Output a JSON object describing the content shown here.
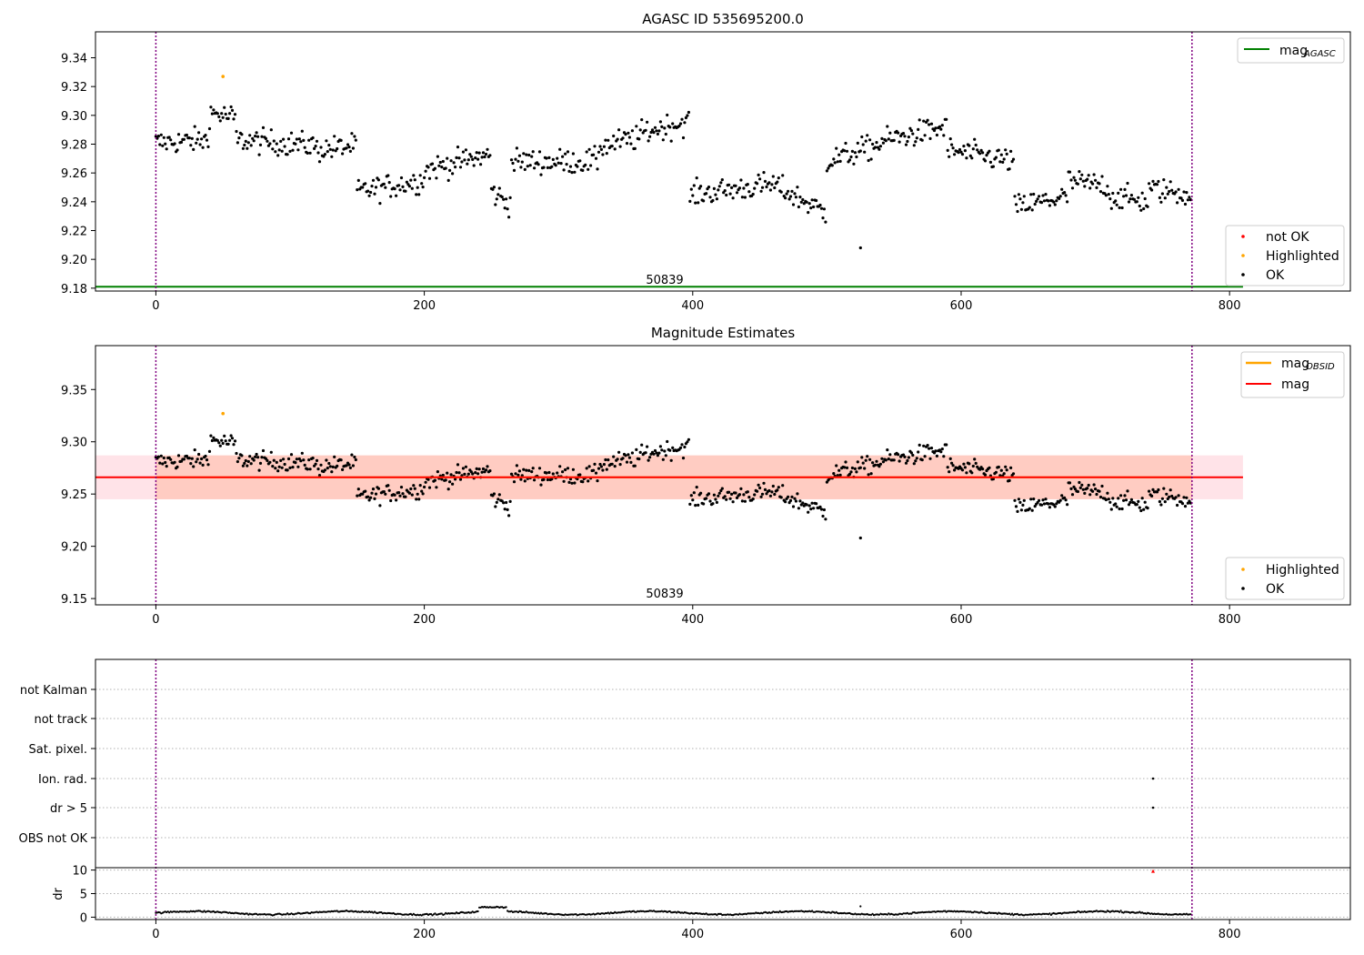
{
  "colors": {
    "ok": "#000000",
    "highlighted": "#ffa500",
    "not_ok": "#ff0000",
    "agasc_line": "#008000",
    "mag_line": "#ff0000",
    "obsid_line": "#ffa500",
    "band_outer": "#ffc0cb",
    "band_inner": "#ffa07a",
    "vline": "#800080"
  },
  "chart_data": [
    {
      "type": "scatter",
      "title": "AGASC ID 535695200.0",
      "xlim": [
        -45,
        890
      ],
      "ylim": [
        9.178,
        9.358
      ],
      "xticks": [
        "0",
        "200",
        "400",
        "600",
        "800"
      ],
      "yticks": [
        "9.18",
        "9.20",
        "9.22",
        "9.24",
        "9.26",
        "9.28",
        "9.30",
        "9.32",
        "9.34"
      ],
      "vlines": [
        0,
        772
      ],
      "hline_agasc": {
        "value": 9.181,
        "x_end": 810
      },
      "annotation": {
        "text": "50839",
        "x": 386
      },
      "legend_lines": [
        {
          "main": "mag",
          "sub": "AGASC"
        }
      ],
      "legend_points": [
        "not OK",
        "Highlighted",
        "OK"
      ],
      "highlighted_point": {
        "x": 50,
        "y": 9.327
      },
      "outlier_points": [
        {
          "x": 525,
          "y": 9.208
        }
      ],
      "segments": [
        {
          "x": [
            0,
            40
          ],
          "y": [
            9.281,
            9.283
          ]
        },
        {
          "x": [
            40,
            60
          ],
          "y": [
            9.302,
            9.298
          ]
        },
        {
          "x": [
            60,
            120
          ],
          "y": [
            9.283,
            9.279
          ]
        },
        {
          "x": [
            120,
            150
          ],
          "y": [
            9.276,
            9.279
          ]
        },
        {
          "x": [
            150,
            200
          ],
          "y": [
            9.247,
            9.255
          ]
        },
        {
          "x": [
            200,
            250
          ],
          "y": [
            9.262,
            9.273
          ]
        },
        {
          "x": [
            250,
            265
          ],
          "y": [
            9.247,
            9.238
          ]
        },
        {
          "x": [
            265,
            330
          ],
          "y": [
            9.268,
            9.268
          ]
        },
        {
          "x": [
            330,
            362
          ],
          "y": [
            9.278,
            9.285
          ]
        },
        {
          "x": [
            362,
            398
          ],
          "y": [
            9.288,
            9.296
          ]
        },
        {
          "x": [
            398,
            460
          ],
          "y": [
            9.245,
            9.252
          ]
        },
        {
          "x": [
            460,
            500
          ],
          "y": [
            9.252,
            9.232
          ]
        },
        {
          "x": [
            500,
            540
          ],
          "y": [
            9.268,
            9.28
          ]
        },
        {
          "x": [
            540,
            590
          ],
          "y": [
            9.282,
            9.292
          ]
        },
        {
          "x": [
            590,
            640
          ],
          "y": [
            9.276,
            9.268
          ]
        },
        {
          "x": [
            640,
            680
          ],
          "y": [
            9.236,
            9.244
          ]
        },
        {
          "x": [
            680,
            710
          ],
          "y": [
            9.254,
            9.251
          ]
        },
        {
          "x": [
            710,
            740
          ],
          "y": [
            9.244,
            9.24
          ]
        },
        {
          "x": [
            740,
            772
          ],
          "y": [
            9.249,
            9.245
          ]
        }
      ]
    },
    {
      "type": "scatter",
      "title": "Magnitude Estimates",
      "xlim": [
        -45,
        890
      ],
      "ylim": [
        9.144,
        9.392
      ],
      "xticks": [
        "0",
        "200",
        "400",
        "600",
        "800"
      ],
      "yticks": [
        "9.15",
        "9.20",
        "9.25",
        "9.30",
        "9.35"
      ],
      "vlines": [
        0,
        772
      ],
      "mag": {
        "value": 9.266,
        "band": [
          9.245,
          9.287
        ],
        "x_end": 810
      },
      "annotation": {
        "text": "50839",
        "x": 386
      },
      "legend_lines": [
        {
          "main": "mag",
          "sub": "OBSID"
        },
        {
          "main": "mag",
          "sub": ""
        }
      ],
      "legend_points": [
        "Highlighted",
        "OK"
      ],
      "highlighted_point": {
        "x": 50,
        "y": 9.327
      }
    },
    {
      "type": "scatter",
      "title": "",
      "xlim": [
        -45,
        890
      ],
      "xticks": [
        "0",
        "200",
        "400",
        "600",
        "800"
      ],
      "flag_labels": [
        "not Kalman",
        "not track",
        "Sat. pixel.",
        "Ion. rad.",
        "dr > 5",
        "OBS not OK"
      ],
      "flag_points": [
        {
          "flag": "Ion. rad.",
          "x": 743
        },
        {
          "flag": "dr > 5",
          "x": 743
        }
      ],
      "vlines": [
        0,
        772
      ],
      "dr": {
        "ylabel": "dr",
        "yticks": [
          "0",
          "5",
          "10"
        ],
        "ylim": [
          -0.5,
          10.5
        ],
        "outlier": {
          "x": 743,
          "y": 9.8
        },
        "baseline": 0.9
      }
    }
  ]
}
